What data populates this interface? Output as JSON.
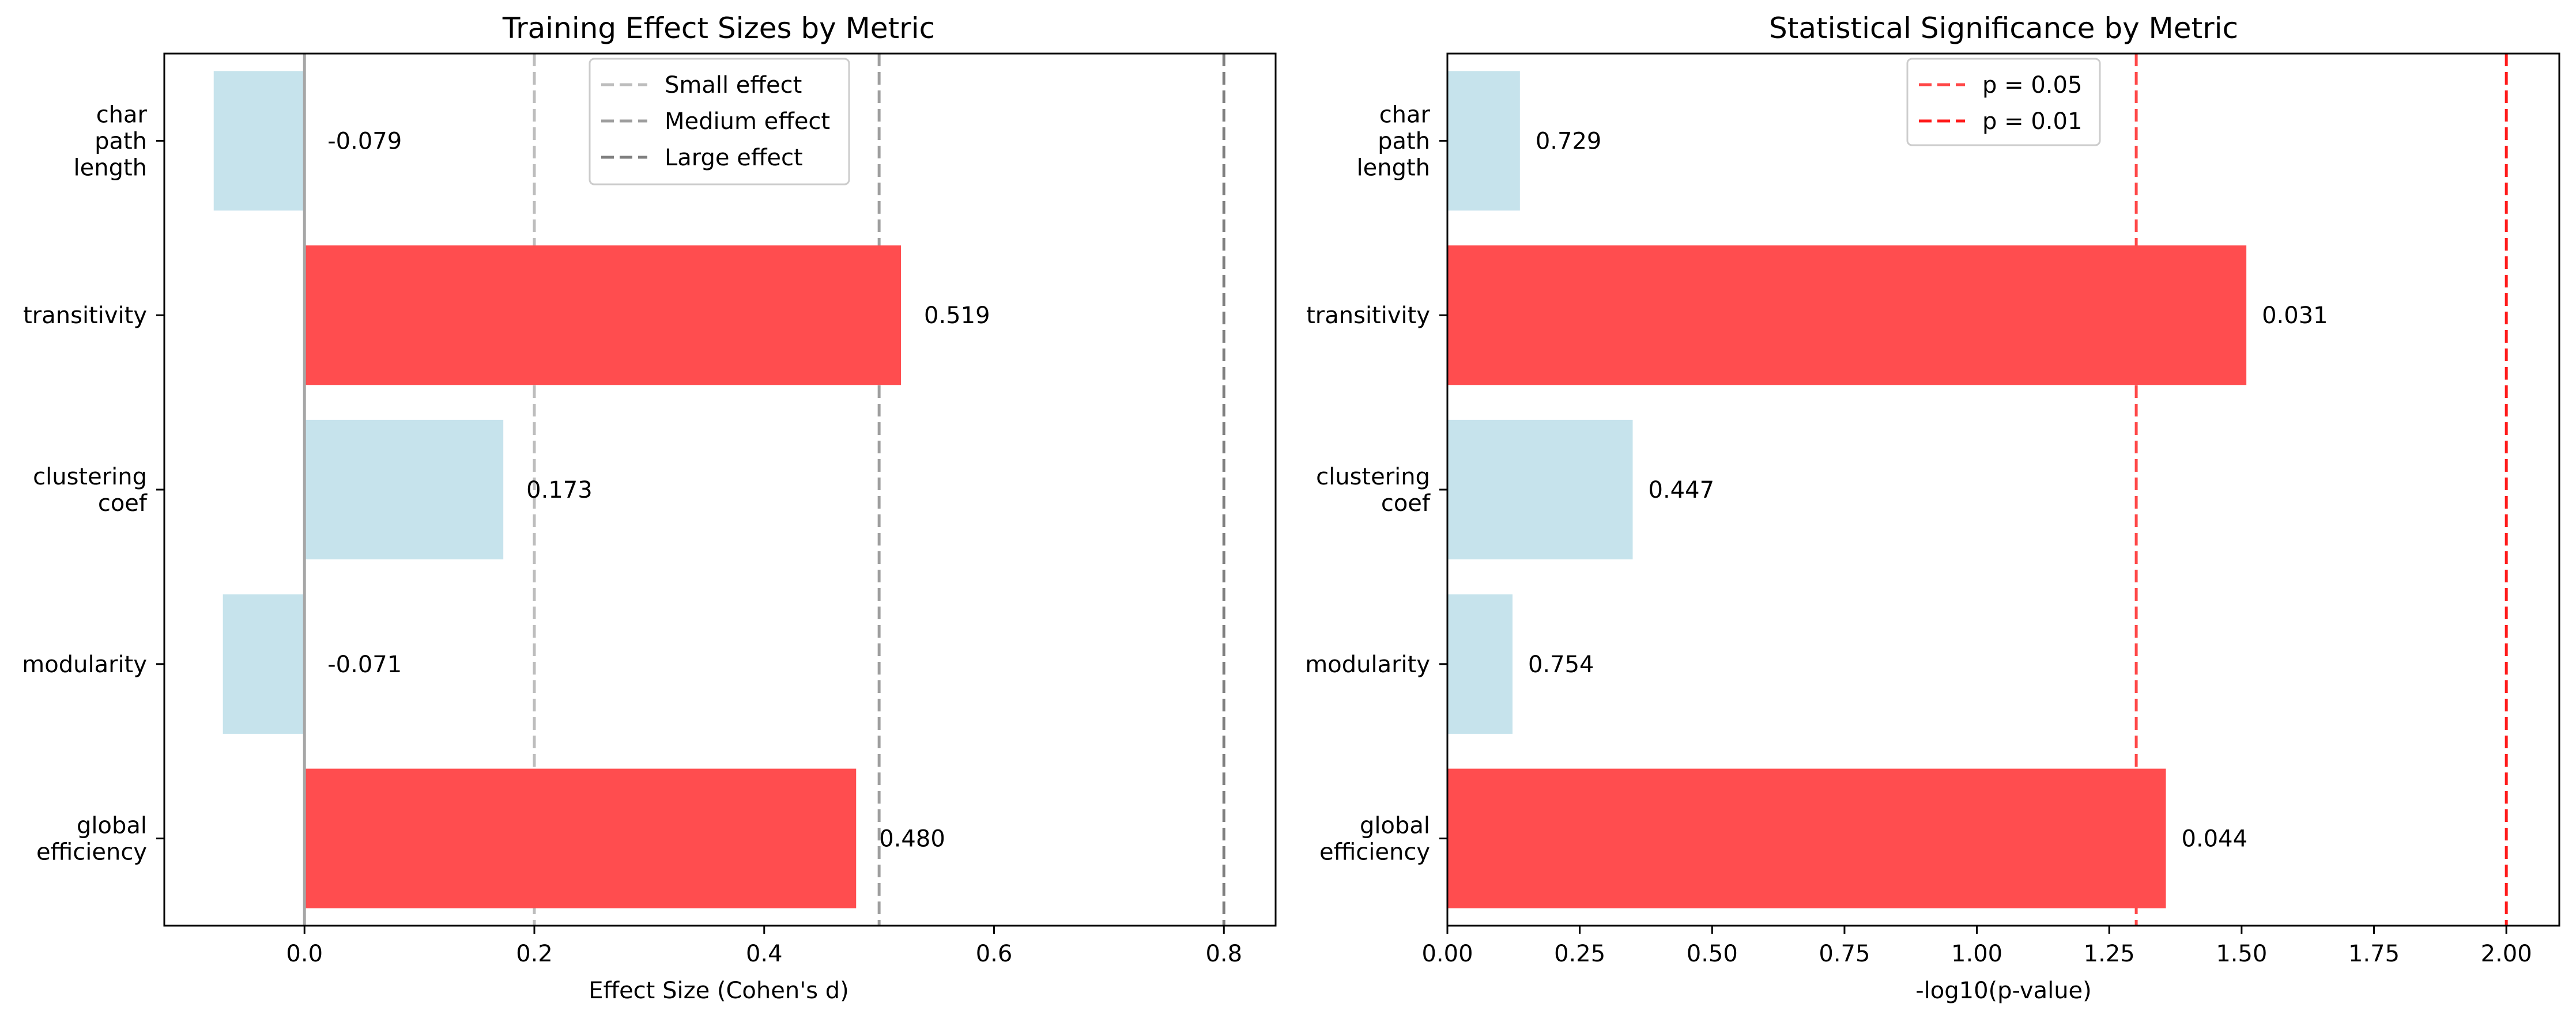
{
  "chart_data": [
    {
      "type": "bar",
      "orientation": "horizontal",
      "title": "Training Effect Sizes by Metric",
      "xlabel": "Effect Size (Cohen's d)",
      "ylabel": "",
      "categories": [
        [
          "char",
          "path",
          "length"
        ],
        [
          "transitivity"
        ],
        [
          "clustering",
          "coef"
        ],
        [
          "modularity"
        ],
        [
          "global",
          "efficiency"
        ]
      ],
      "values": [
        -0.079,
        0.519,
        0.173,
        -0.071,
        0.48
      ],
      "value_labels": [
        "-0.079",
        "0.519",
        "0.173",
        "-0.071",
        "0.480"
      ],
      "significant": [
        false,
        true,
        false,
        false,
        true
      ],
      "xlim": [
        -0.122,
        0.845
      ],
      "xticks": [
        0.0,
        0.2,
        0.4,
        0.6,
        0.8
      ],
      "xtick_labels": [
        "0.0",
        "0.2",
        "0.4",
        "0.6",
        "0.8"
      ],
      "reference_lines": [
        {
          "value": 0.2,
          "label": "Small effect",
          "color": "#bdbdbd"
        },
        {
          "value": 0.5,
          "label": "Medium effect",
          "color": "#9e9e9e"
        },
        {
          "value": 0.8,
          "label": "Large effect",
          "color": "#7f7f7f"
        }
      ],
      "zero_line_color": "#a6a6a6",
      "legend_position": "top-center",
      "grid": false
    },
    {
      "type": "bar",
      "orientation": "horizontal",
      "title": "Statistical Significance by Metric",
      "xlabel": "-log10(p-value)",
      "ylabel": "",
      "categories": [
        [
          "char",
          "path",
          "length"
        ],
        [
          "transitivity"
        ],
        [
          "clustering",
          "coef"
        ],
        [
          "modularity"
        ],
        [
          "global",
          "efficiency"
        ]
      ],
      "values": [
        0.137,
        1.509,
        0.35,
        0.123,
        1.357
      ],
      "value_labels": [
        "0.729",
        "0.031",
        "0.447",
        "0.754",
        "0.044"
      ],
      "significant": [
        false,
        true,
        false,
        false,
        true
      ],
      "xlim": [
        0.0,
        2.1
      ],
      "xticks": [
        0.0,
        0.25,
        0.5,
        0.75,
        1.0,
        1.25,
        1.5,
        1.75,
        2.0
      ],
      "xtick_labels": [
        "0.00",
        "0.25",
        "0.50",
        "0.75",
        "1.00",
        "1.25",
        "1.50",
        "1.75",
        "2.00"
      ],
      "reference_lines": [
        {
          "value": 1.301,
          "label": "p = 0.05",
          "color": "#ff4747"
        },
        {
          "value": 2.0,
          "label": "p = 0.01",
          "color": "#ff1a1a"
        }
      ],
      "legend_position": "top-center",
      "grid": false
    }
  ],
  "colors": {
    "significant_bar": "#ff4d4f",
    "nonsignificant_bar": "#c6e3ec",
    "axis": "#000000"
  }
}
